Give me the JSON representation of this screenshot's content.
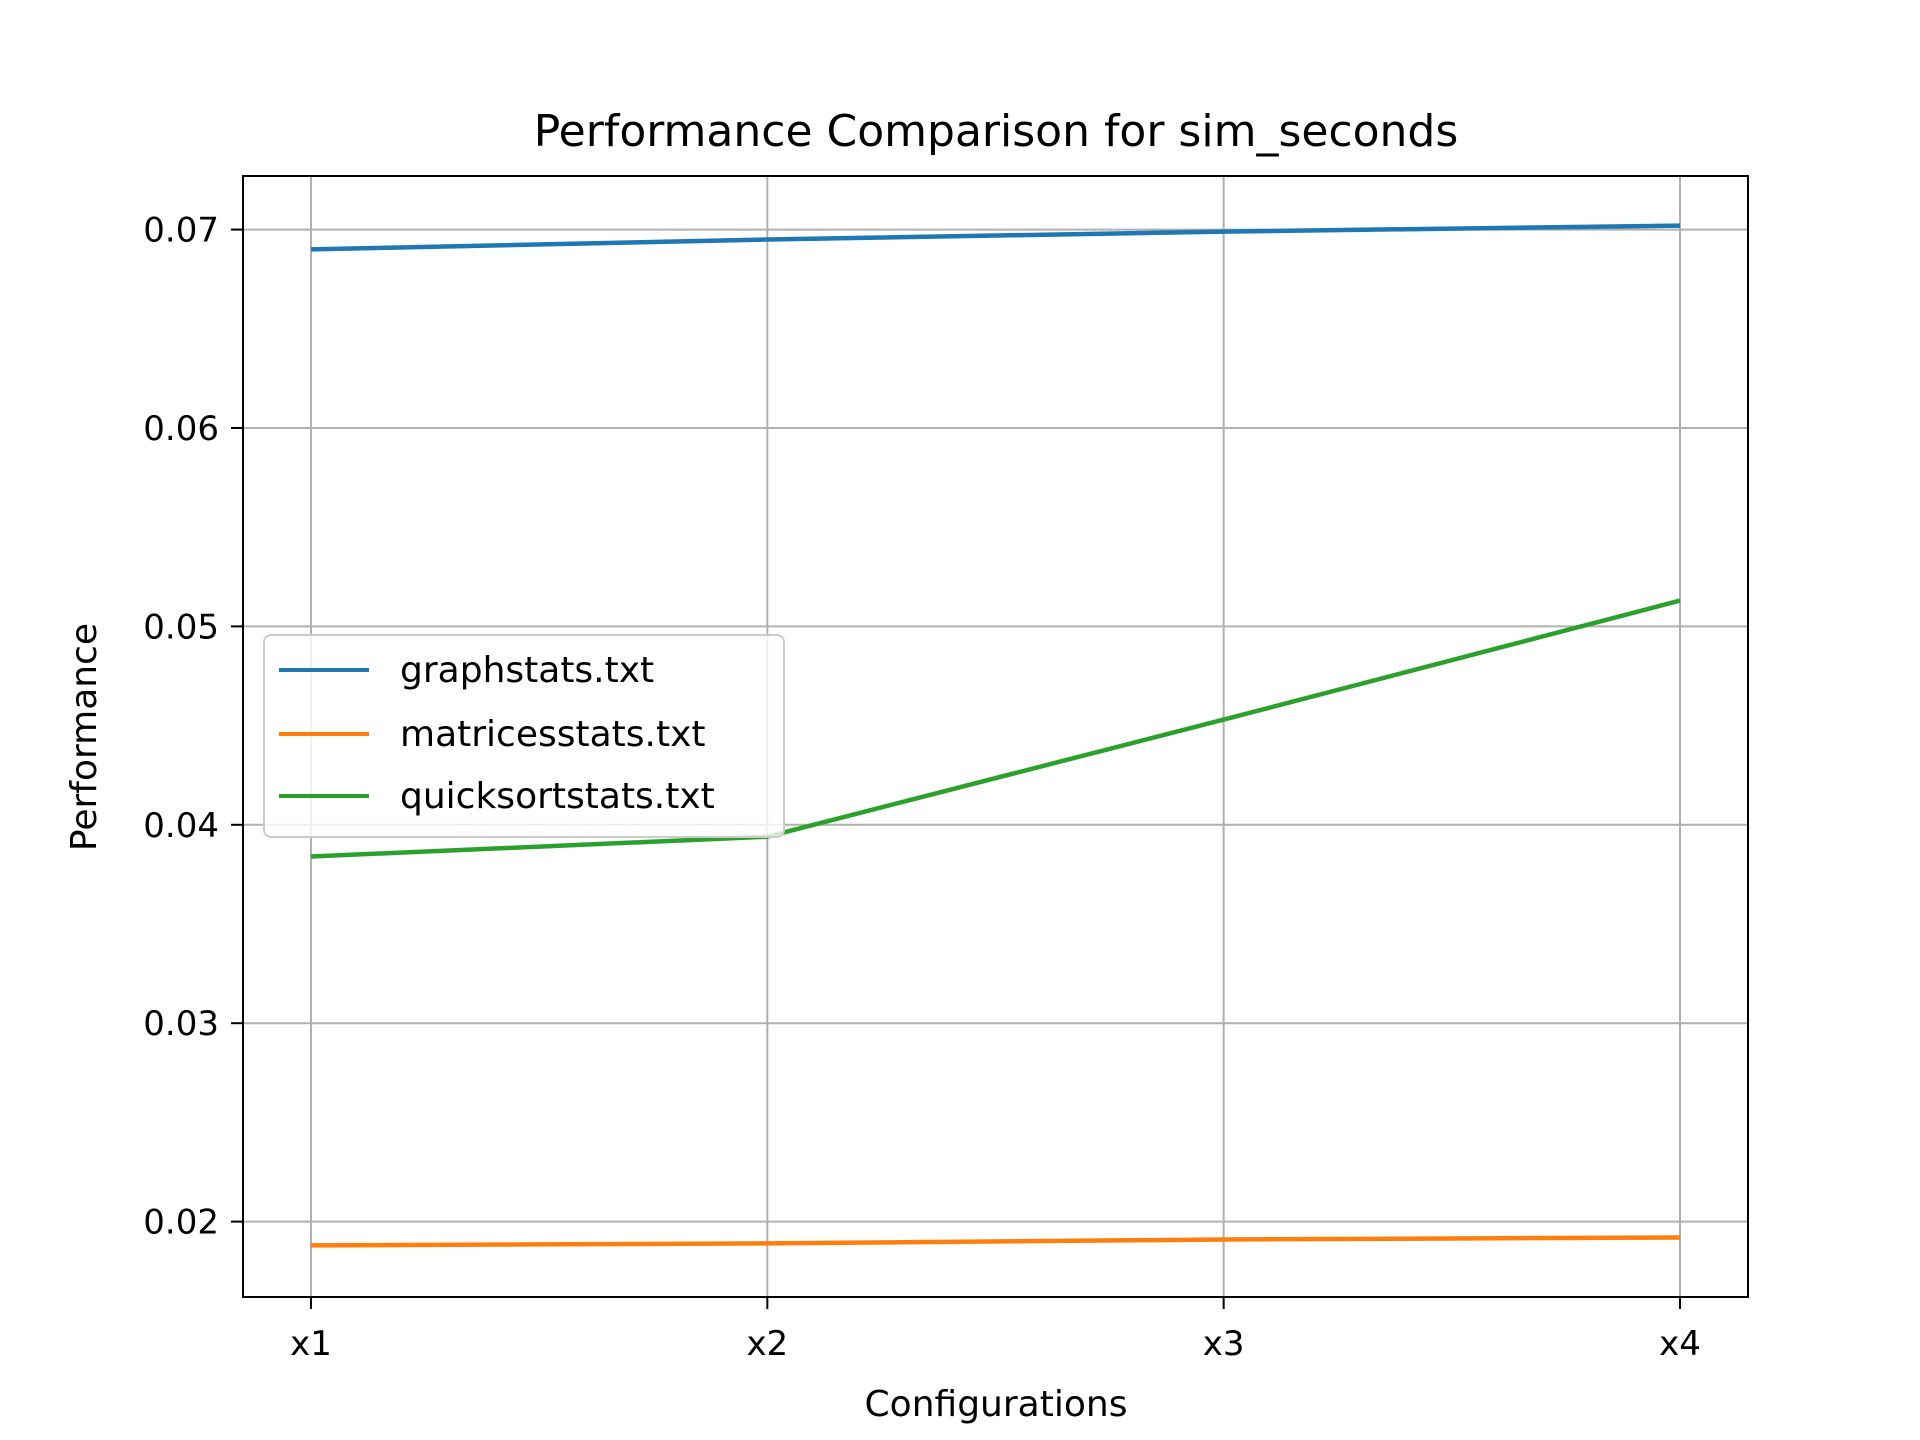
{
  "chart_data": {
    "type": "line",
    "title": "Performance Comparison for sim_seconds",
    "xlabel": "Configurations",
    "ylabel": "Performance",
    "categories": [
      "x1",
      "x2",
      "x3",
      "x4"
    ],
    "ylim": [
      0.0162,
      0.0727
    ],
    "yticks": [
      0.02,
      0.03,
      0.04,
      0.05,
      0.06,
      0.07
    ],
    "ytick_labels": [
      "0.02",
      "0.03",
      "0.04",
      "0.05",
      "0.06",
      "0.07"
    ],
    "grid": true,
    "legend_position": "center-left",
    "series": [
      {
        "name": "graphstats.txt",
        "color": "#1f77b4",
        "values": [
          0.069,
          0.0695,
          0.0699,
          0.0702
        ]
      },
      {
        "name": "matricesstats.txt",
        "color": "#ff7f0e",
        "values": [
          0.0188,
          0.0189,
          0.0191,
          0.0192
        ]
      },
      {
        "name": "quicksortstats.txt",
        "color": "#2ca02c",
        "values": [
          0.0384,
          0.0394,
          0.0453,
          0.0513
        ]
      }
    ]
  }
}
